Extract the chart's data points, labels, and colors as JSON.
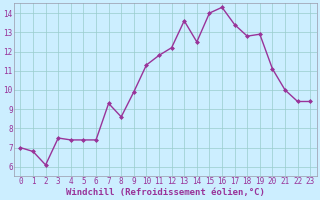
{
  "x": [
    0,
    1,
    2,
    3,
    4,
    5,
    6,
    7,
    8,
    9,
    10,
    11,
    12,
    13,
    14,
    15,
    16,
    17,
    18,
    19,
    20,
    21,
    22,
    23
  ],
  "y": [
    7.0,
    6.8,
    6.1,
    7.5,
    7.4,
    7.4,
    7.4,
    9.3,
    8.6,
    9.9,
    11.3,
    11.8,
    12.2,
    13.6,
    12.5,
    14.0,
    14.3,
    13.4,
    12.8,
    12.9,
    11.1,
    10.0,
    9.4,
    9.4
  ],
  "line_color": "#993399",
  "marker": "D",
  "marker_size": 2.0,
  "bg_color": "#cceeff",
  "grid_color": "#99cccc",
  "xlabel": "Windchill (Refroidissement éolien,°C)",
  "text_color": "#993399",
  "ylim": [
    5.5,
    14.5
  ],
  "xlim": [
    -0.5,
    23.5
  ],
  "yticks": [
    6,
    7,
    8,
    9,
    10,
    11,
    12,
    13,
    14
  ],
  "xticks": [
    0,
    1,
    2,
    3,
    4,
    5,
    6,
    7,
    8,
    9,
    10,
    11,
    12,
    13,
    14,
    15,
    16,
    17,
    18,
    19,
    20,
    21,
    22,
    23
  ],
  "tick_fontsize": 5.5,
  "xlabel_fontsize": 6.5,
  "line_width": 1.0,
  "spine_color": "#9999aa"
}
